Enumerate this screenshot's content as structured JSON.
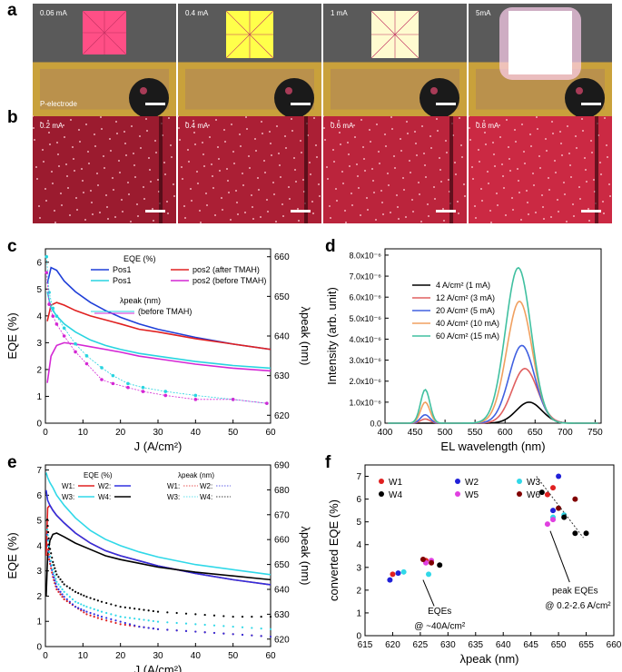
{
  "panels": {
    "a": {
      "letter": "a",
      "photos": [
        {
          "label": "0.06 mA"
        },
        {
          "label": "0.4 mA"
        },
        {
          "label": "1 mA"
        },
        {
          "label": "5mA"
        }
      ],
      "electrode_label": "P-electrode"
    },
    "b": {
      "letter": "b",
      "photos": [
        {
          "label": "0.2 mA"
        },
        {
          "label": "0.4 mA"
        },
        {
          "label": "0.6 mA"
        },
        {
          "label": "0.8 mA"
        }
      ]
    },
    "c": {
      "letter": "c"
    },
    "d": {
      "letter": "d"
    },
    "e": {
      "letter": "e"
    },
    "f": {
      "letter": "f"
    }
  },
  "chart_data": [
    {
      "id": "c",
      "type": "line",
      "xlabel": "J (A/cm²)",
      "ylabel": "EQE (%)",
      "y2label": "λpeak (nm)",
      "xlim": [
        0,
        60
      ],
      "ylim": [
        0,
        6.5
      ],
      "y2lim": [
        618,
        662
      ],
      "xticks": [
        "0",
        "10",
        "20",
        "30",
        "40",
        "50",
        "60"
      ],
      "yticks": [
        "0",
        "1",
        "2",
        "3",
        "4",
        "5",
        "6"
      ],
      "y2ticks": [
        "620",
        "630",
        "640",
        "650",
        "660"
      ],
      "legend_title_eqe": "EQE (%)",
      "legend_title_lambda": "λpeak (nm)",
      "legend_before": "(before TMAH)",
      "series": [
        {
          "name": "Pos1",
          "color": "#1f3fd8",
          "x": [
            0.5,
            1.5,
            3,
            5,
            8,
            12,
            16,
            20,
            25,
            30,
            40,
            50,
            60
          ],
          "y": [
            5.2,
            5.8,
            5.7,
            5.3,
            4.9,
            4.5,
            4.2,
            3.95,
            3.7,
            3.5,
            3.2,
            2.95,
            2.75
          ]
        },
        {
          "name": "pos2 (after TMAH)",
          "color": "#e02020",
          "x": [
            0.5,
            1.5,
            3,
            5,
            8,
            12,
            16,
            20,
            25,
            30,
            40,
            50,
            60
          ],
          "y": [
            3.8,
            4.4,
            4.5,
            4.4,
            4.2,
            4.0,
            3.85,
            3.7,
            3.5,
            3.4,
            3.15,
            2.95,
            2.75
          ]
        },
        {
          "name": "Pos1",
          "color": "#28d4e0",
          "x": [
            0.5,
            1.5,
            3,
            5,
            8,
            12,
            16,
            20,
            25,
            30,
            40,
            50,
            60
          ],
          "y": [
            4.9,
            4.3,
            4.0,
            3.7,
            3.4,
            3.1,
            2.9,
            2.75,
            2.6,
            2.5,
            2.3,
            2.15,
            2.05
          ]
        },
        {
          "name": "pos2 (before TMAH)",
          "color": "#d427d4",
          "x": [
            0.5,
            1.5,
            3,
            5,
            8,
            12,
            16,
            20,
            25,
            30,
            40,
            50,
            60
          ],
          "y": [
            1.5,
            2.5,
            2.9,
            3.0,
            2.95,
            2.85,
            2.75,
            2.65,
            2.5,
            2.4,
            2.2,
            2.05,
            1.95
          ]
        }
      ],
      "lambda_series": [
        {
          "name": "λpeak Pos1 (before TMAH)",
          "color": "#28d4e0",
          "x": [
            0.3,
            1,
            2,
            3,
            5,
            8,
            11,
            15,
            18,
            22,
            26,
            32,
            40,
            50,
            59
          ],
          "y": [
            660,
            651,
            647,
            645,
            642,
            638,
            635,
            632,
            630,
            628,
            627,
            626,
            625,
            624,
            623
          ]
        },
        {
          "name": "λpeak pos2 (before TMAH)",
          "color": "#d427d4",
          "x": [
            0.3,
            1,
            2,
            3,
            5,
            8,
            11,
            15,
            18,
            22,
            26,
            32,
            40,
            50,
            59
          ],
          "y": [
            656,
            648,
            645,
            643,
            640,
            636,
            633,
            629,
            628,
            627,
            626,
            625,
            624,
            624,
            623
          ]
        }
      ]
    },
    {
      "id": "d",
      "type": "line",
      "xlabel": "EL wavelength (nm)",
      "ylabel": "Intensity (arb. unit)",
      "xlim": [
        400,
        760
      ],
      "ylim": [
        0,
        8.3
      ],
      "xticks": [
        "400",
        "450",
        "500",
        "550",
        "600",
        "650",
        "700",
        "750"
      ],
      "yticks": [
        "0.0",
        "1.0x10⁻⁶",
        "2.0x10⁻⁶",
        "3.0x10⁻⁶",
        "4.0x10⁻⁶",
        "5.0x10⁻⁶",
        "6.0x10⁻⁶",
        "7.0x10⁻⁶",
        "8.0x10⁻⁶"
      ],
      "series": [
        {
          "name": "4 A/cm² (1 mA)",
          "color": "#000000",
          "peak1": 0.0,
          "peak2": 1.0,
          "center2": 640
        },
        {
          "name": "12 A/cm² (3 mA)",
          "color": "#e06060",
          "peak1": 0.2,
          "peak2": 2.6,
          "center2": 633
        },
        {
          "name": "20 A/cm² (5 mA)",
          "color": "#4060e0",
          "peak1": 0.4,
          "peak2": 3.7,
          "center2": 628
        },
        {
          "name": "40 A/cm² (10 mA)",
          "color": "#f0a060",
          "peak1": 1.0,
          "peak2": 5.8,
          "center2": 624
        },
        {
          "name": "60 A/cm² (15 mA)",
          "color": "#40c0a0",
          "peak1": 1.6,
          "peak2": 7.4,
          "center2": 622
        }
      ]
    },
    {
      "id": "e",
      "type": "line",
      "xlabel": "J (A/cm²)",
      "ylabel": "EQE (%)",
      "y2label": "λpeak (nm)",
      "xlim": [
        0,
        60
      ],
      "ylim": [
        0,
        7.2
      ],
      "y2lim": [
        617,
        690
      ],
      "xticks": [
        "0",
        "10",
        "20",
        "30",
        "40",
        "50",
        "60"
      ],
      "yticks": [
        "0",
        "1",
        "2",
        "3",
        "4",
        "5",
        "6",
        "7"
      ],
      "y2ticks": [
        "620",
        "630",
        "640",
        "650",
        "660",
        "670",
        "680",
        "690"
      ],
      "legend_title_eqe": "EQE (%)",
      "legend_title_lambda": "λpeak (nm)",
      "legend_rows": [
        "W1:",
        "W2:",
        "W3:",
        "W4:"
      ],
      "series": [
        {
          "name": "W1",
          "color": "#e02020",
          "x": [
            0.2,
            0.6,
            1.2,
            2,
            3,
            5,
            8,
            12,
            16,
            20,
            25,
            30,
            40,
            50,
            60
          ],
          "y": [
            3.6,
            5.5,
            5.6,
            5.4,
            5.2,
            4.9,
            4.5,
            4.1,
            3.8,
            3.6,
            3.4,
            3.2,
            2.9,
            2.65,
            2.45
          ]
        },
        {
          "name": "W2",
          "color": "#3030e0",
          "x": [
            0.2,
            0.6,
            1.2,
            2,
            3,
            5,
            8,
            12,
            16,
            20,
            25,
            30,
            40,
            50,
            60
          ],
          "y": [
            6.2,
            5.8,
            5.6,
            5.4,
            5.2,
            4.9,
            4.5,
            4.1,
            3.8,
            3.6,
            3.4,
            3.2,
            2.9,
            2.65,
            2.45
          ]
        },
        {
          "name": "W3",
          "color": "#30d8e8",
          "x": [
            0.2,
            0.6,
            1.2,
            2,
            3,
            5,
            8,
            12,
            16,
            20,
            25,
            30,
            40,
            50,
            60
          ],
          "y": [
            6.9,
            6.7,
            6.5,
            6.3,
            6.0,
            5.6,
            5.1,
            4.6,
            4.25,
            4.0,
            3.75,
            3.55,
            3.25,
            3.05,
            2.85
          ]
        },
        {
          "name": "W4",
          "color": "#000000",
          "x": [
            0.2,
            0.6,
            1.2,
            2,
            3,
            5,
            8,
            12,
            16,
            20,
            25,
            30,
            40,
            50,
            60
          ],
          "y": [
            2.0,
            3.6,
            4.2,
            4.45,
            4.5,
            4.35,
            4.1,
            3.85,
            3.6,
            3.45,
            3.3,
            3.15,
            2.95,
            2.8,
            2.65
          ]
        }
      ],
      "lambda_series": [
        {
          "name": "W1 λpeak",
          "color": "#e02020",
          "x": [
            0.5,
            1,
            2,
            3,
            5,
            8,
            11,
            15,
            20,
            25,
            30,
            40,
            50,
            60
          ],
          "y": [
            660,
            652,
            645,
            640,
            636,
            633,
            630,
            628,
            626,
            625,
            624,
            623,
            622,
            621
          ]
        },
        {
          "name": "W2 λpeak",
          "color": "#3030e0",
          "x": [
            0.5,
            1,
            2,
            3,
            5,
            8,
            11,
            15,
            20,
            25,
            30,
            40,
            50,
            60
          ],
          "y": [
            662,
            653,
            646,
            641,
            637,
            633,
            631,
            629,
            627,
            625,
            624,
            623,
            622,
            621
          ]
        },
        {
          "name": "W3 λpeak",
          "color": "#30d8e8",
          "x": [
            0.5,
            1,
            2,
            3,
            5,
            8,
            11,
            15,
            20,
            25,
            30,
            40,
            50,
            60
          ],
          "y": [
            664,
            655,
            648,
            643,
            639,
            635,
            633,
            631,
            629,
            628,
            627,
            626,
            625,
            624
          ]
        },
        {
          "name": "W4 λpeak",
          "color": "#000000",
          "x": [
            0.5,
            1,
            2,
            3,
            5,
            8,
            11,
            15,
            20,
            25,
            30,
            40,
            50,
            60
          ],
          "y": [
            668,
            658,
            651,
            646,
            642,
            639,
            637,
            635,
            633,
            632,
            631,
            630,
            629,
            629
          ]
        }
      ]
    },
    {
      "id": "f",
      "type": "scatter",
      "xlabel": "λpeak (nm)",
      "ylabel": "converted EQE (%)",
      "xlim": [
        615,
        660
      ],
      "ylim": [
        0,
        7.5
      ],
      "xticks": [
        "615",
        "620",
        "625",
        "630",
        "635",
        "640",
        "645",
        "650",
        "655",
        "660"
      ],
      "yticks": [
        "0",
        "1",
        "2",
        "3",
        "4",
        "5",
        "6",
        "7"
      ],
      "annotation_low": [
        "EQEs",
        "@ ~40A/cm²"
      ],
      "annotation_high": [
        "peak EQEs",
        "@ 0.2-2.6 A/cm²"
      ],
      "series": [
        {
          "name": "W1",
          "color": "#e02020",
          "points": [
            [
              620,
              2.7
            ],
            [
              626,
              3.3
            ],
            [
              648,
              6.2
            ],
            [
              649,
              6.5
            ]
          ]
        },
        {
          "name": "W2",
          "color": "#2020d8",
          "points": [
            [
              619.5,
              2.45
            ],
            [
              621,
              2.75
            ],
            [
              649,
              5.5
            ],
            [
              650,
              7.0
            ]
          ]
        },
        {
          "name": "W3",
          "color": "#30d8e8",
          "points": [
            [
              622,
              2.8
            ],
            [
              626.5,
              2.7
            ],
            [
              649,
              5.2
            ],
            [
              651,
              5.3
            ]
          ]
        },
        {
          "name": "W4",
          "color": "#000000",
          "points": [
            [
              628.5,
              3.1
            ],
            [
              647,
              6.3
            ],
            [
              651,
              5.2
            ],
            [
              653,
              4.5
            ],
            [
              655,
              4.5
            ]
          ]
        },
        {
          "name": "W5",
          "color": "#e040e0",
          "points": [
            [
              626,
              3.2
            ],
            [
              627,
              3.3
            ],
            [
              648,
              4.9
            ],
            [
              649,
              5.1
            ]
          ]
        },
        {
          "name": "W6",
          "color": "#800000",
          "points": [
            [
              625.5,
              3.35
            ],
            [
              627,
              3.2
            ],
            [
              650,
              5.6
            ],
            [
              653,
              6.0
            ]
          ]
        }
      ]
    }
  ]
}
